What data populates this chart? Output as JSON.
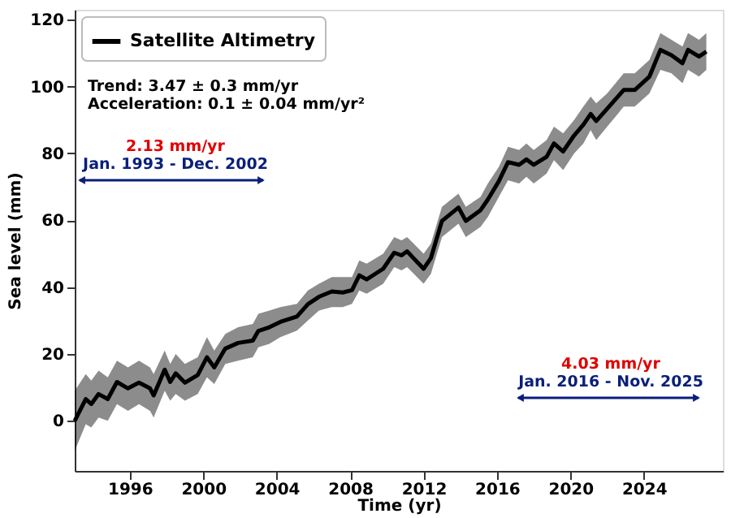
{
  "chart_data": {
    "type": "line",
    "xlabel": "Time (yr)",
    "ylabel": "Sea level (mm)",
    "xlim": [
      1993,
      2028.3
    ],
    "xticks": [
      1996,
      2000,
      2004,
      2008,
      2012,
      2016,
      2020,
      2024
    ],
    "ylim": [
      -15,
      123
    ],
    "yticks": [
      0,
      20,
      40,
      60,
      80,
      100,
      120
    ],
    "grid": false,
    "legend": "top left",
    "line_style": "solid",
    "marker": "none",
    "annotations": [
      "Trend: 3.47 ± 0.3 mm/yr",
      "Acceleration: 0.1 ± 0.04 mm/yr²",
      "2.13 mm/yr",
      "Jan. 1993 - Dec. 2002",
      "4.03 mm/yr",
      "Jan. 2016 - Nov. 2025"
    ],
    "series": [
      {
        "name": "Satellite Altimetry",
        "color": "#000000",
        "x": [
          1993.0,
          1993.6,
          1993.9,
          1994.3,
          1994.8,
          1995.3,
          1995.9,
          1996.5,
          1997.1,
          1997.3,
          1997.9,
          1998.2,
          1998.5,
          1999.0,
          1999.7,
          2000.2,
          2000.6,
          2001.2,
          2001.9,
          2002.7,
          2003.0,
          2003.6,
          2004.2,
          2005.1,
          2005.7,
          2006.3,
          2007.0,
          2007.6,
          2008.1,
          2008.5,
          2008.9,
          2009.8,
          2010.4,
          2010.8,
          2011.1,
          2012.0,
          2012.4,
          2013.0,
          2013.9,
          2014.3,
          2015.1,
          2015.5,
          2016.1,
          2016.6,
          2017.2,
          2017.6,
          2018.0,
          2018.7,
          2019.1,
          2019.6,
          2020.2,
          2020.7,
          2021.1,
          2021.4,
          2022.0,
          2022.9,
          2023.5,
          2024.3,
          2024.9,
          2025.5,
          2026.1,
          2026.4,
          2027.0,
          2027.4
        ],
        "values": [
          0,
          6.5,
          5,
          8,
          6.5,
          11.6,
          9.7,
          11.4,
          9.7,
          7.6,
          15.3,
          11.6,
          14.2,
          11.4,
          13.7,
          19,
          16,
          21.6,
          23.3,
          24,
          26.9,
          28,
          29.6,
          31.2,
          34.9,
          37.1,
          38.7,
          38.4,
          39.1,
          43.5,
          42.3,
          45.5,
          50.3,
          49.5,
          50.7,
          45.5,
          48.7,
          59.8,
          63.8,
          59.8,
          63,
          66.2,
          71.7,
          77.4,
          76.6,
          78.2,
          76.6,
          79,
          83,
          80.6,
          85.4,
          88.6,
          91.8,
          89.7,
          93.4,
          99,
          99,
          103,
          111,
          109.4,
          107,
          111,
          109,
          110.5
        ],
        "lower": [
          -9,
          -1,
          -2,
          1,
          0,
          5,
          3,
          5,
          3,
          1,
          9,
          6,
          8,
          6,
          8,
          13,
          11,
          17,
          18,
          19,
          22,
          23,
          25,
          27,
          30,
          33,
          34,
          34,
          35,
          39,
          38,
          41,
          46,
          45,
          46,
          41,
          44,
          55,
          59,
          55,
          58,
          61,
          67,
          72,
          71,
          73,
          71,
          74,
          78,
          75,
          80,
          83,
          87,
          84,
          88,
          94,
          94,
          98,
          105,
          104,
          101,
          105,
          103,
          105
        ],
        "upper": [
          9,
          14,
          12,
          15,
          13,
          18,
          16,
          18,
          16,
          14,
          21,
          17,
          20,
          17,
          19,
          25,
          21,
          26,
          28,
          29,
          32,
          33,
          34,
          35,
          39,
          41,
          43,
          43,
          43,
          48,
          47,
          50,
          55,
          54,
          55,
          50,
          53,
          64,
          68,
          64,
          67,
          71,
          76,
          82,
          81,
          83,
          81,
          84,
          88,
          86,
          90,
          94,
          97,
          95,
          98,
          104,
          104,
          108,
          116,
          114,
          112,
          116,
          114,
          116
        ]
      }
    ]
  }
}
